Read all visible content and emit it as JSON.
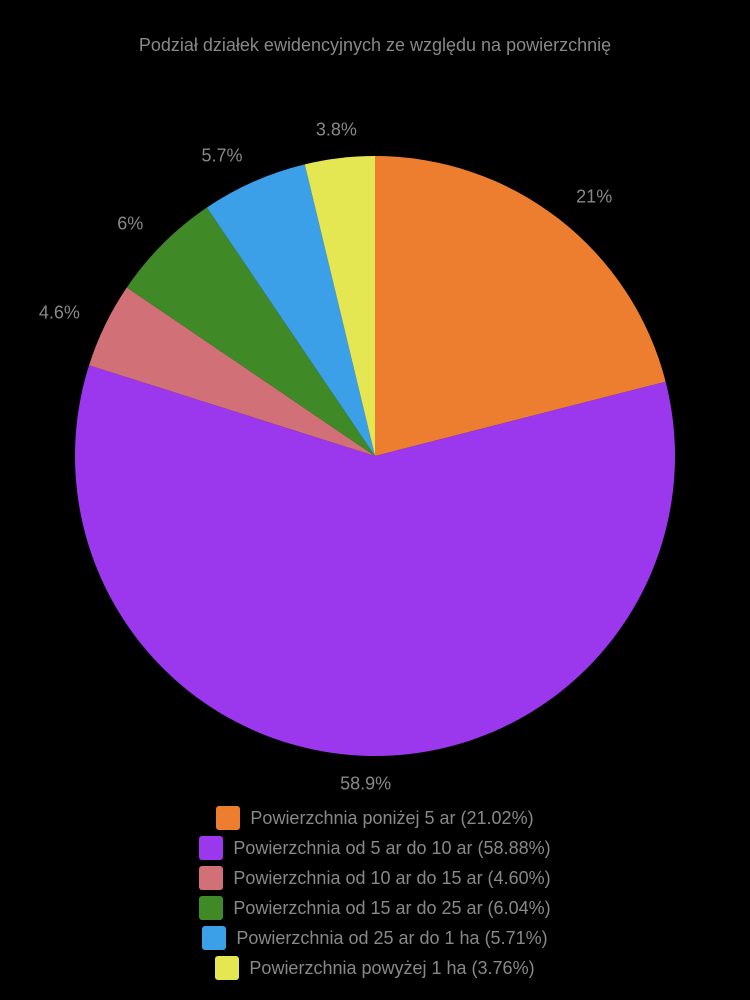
{
  "chart": {
    "type": "pie",
    "title": "Podział działek ewidencyjnych ze względu na powierzchnię",
    "title_color": "#888888",
    "title_fontsize": 18,
    "background_color": "#000000",
    "label_color": "#888888",
    "label_fontsize": 18,
    "pie_radius": 300,
    "start_angle_deg": -90,
    "slices": [
      {
        "label": "Powierzchnia poniżej 5 ar",
        "value": 21.02,
        "color": "#ed7e30",
        "display_pct": "21%"
      },
      {
        "label": "Powierzchnia od 5 ar do 10 ar",
        "value": 58.88,
        "color": "#9b38ed",
        "display_pct": "58.9%"
      },
      {
        "label": "Powierzchnia od 10 ar do 15 ar",
        "value": 4.6,
        "color": "#d27078",
        "display_pct": "4.6%"
      },
      {
        "label": "Powierzchnia od 15 ar do 25 ar",
        "value": 6.04,
        "color": "#3f8a27",
        "display_pct": "6%"
      },
      {
        "label": "Powierzchnia od 25 ar do 1 ha",
        "value": 5.71,
        "color": "#3ba0e8",
        "display_pct": "5.7%"
      },
      {
        "label": "Powierzchnia powyżej 1 ha",
        "value": 3.76,
        "color": "#e4e752",
        "display_pct": "3.8%"
      }
    ],
    "legend": {
      "position": "bottom",
      "text_color": "#888888",
      "fontsize": 18,
      "swatch_size": 24
    }
  }
}
